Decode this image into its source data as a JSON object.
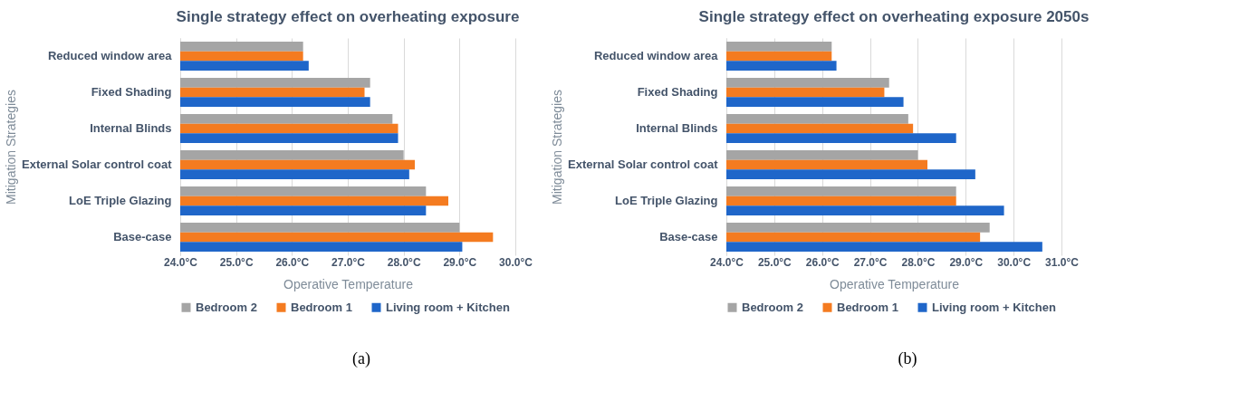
{
  "chart_data": [
    {
      "type": "bar",
      "orientation": "horizontal",
      "title": "Single strategy effect on overheating exposure",
      "xlabel": "Operative Temperature",
      "ylabel": "Mitigation Strategies",
      "categories": [
        "Reduced window area",
        "Fixed Shading",
        "Internal Blinds",
        "External Solar control coat",
        "LoE Triple Glazing",
        "Base-case"
      ],
      "series": [
        {
          "name": "Bedroom 2",
          "color": "#a5a5a5",
          "values": [
            26.2,
            27.4,
            27.8,
            28.0,
            28.4,
            29.0
          ]
        },
        {
          "name": "Bedroom 1",
          "color": "#f47b20",
          "values": [
            26.2,
            27.3,
            27.9,
            28.2,
            28.8,
            29.6
          ]
        },
        {
          "name": "Living room + Kitchen",
          "color": "#1f66c9",
          "values": [
            26.3,
            27.4,
            27.9,
            28.1,
            28.4,
            29.05
          ]
        }
      ],
      "xlim": [
        24,
        30
      ],
      "xticks": [
        {
          "value": 24,
          "label": "24.0°C"
        },
        {
          "value": 25,
          "label": "25.0°C"
        },
        {
          "value": 26,
          "label": "26.0°C"
        },
        {
          "value": 27,
          "label": "27.0°C"
        },
        {
          "value": 28,
          "label": "28.0°C"
        },
        {
          "value": 29,
          "label": "29.0°C"
        },
        {
          "value": 30,
          "label": "30.0°C"
        }
      ],
      "grid": "x",
      "legend": "bottom",
      "annotations": [
        "(a)"
      ]
    },
    {
      "type": "bar",
      "orientation": "horizontal",
      "title": "Single strategy effect on overheating exposure 2050s",
      "xlabel": "Operative Temperature",
      "ylabel": "Mitigation Strategies",
      "categories": [
        "Reduced window area",
        "Fixed Shading",
        "Internal Blinds",
        "External Solar control coat",
        "LoE Triple Glazing",
        "Base-case"
      ],
      "series": [
        {
          "name": "Bedroom 2",
          "color": "#a5a5a5",
          "values": [
            26.2,
            27.4,
            27.8,
            28.0,
            28.8,
            29.5
          ]
        },
        {
          "name": "Bedroom 1",
          "color": "#f47b20",
          "values": [
            26.2,
            27.3,
            27.9,
            28.2,
            28.8,
            29.3
          ]
        },
        {
          "name": "Living room + Kitchen",
          "color": "#1f66c9",
          "values": [
            26.3,
            27.7,
            28.8,
            29.2,
            29.8,
            30.6
          ]
        }
      ],
      "xlim": [
        24,
        31
      ],
      "xticks": [
        {
          "value": 24,
          "label": "24.0°C"
        },
        {
          "value": 25,
          "label": "25.0°C"
        },
        {
          "value": 26,
          "label": "26.0°C"
        },
        {
          "value": 27,
          "label": "27.0°C"
        },
        {
          "value": 28,
          "label": "28.0°C"
        },
        {
          "value": 29,
          "label": "29.0°C"
        },
        {
          "value": 30,
          "label": "30.0°C"
        },
        {
          "value": 31,
          "label": "31.0°C"
        }
      ],
      "grid": "x",
      "legend": "bottom",
      "annotations": [
        "(b)"
      ]
    }
  ]
}
